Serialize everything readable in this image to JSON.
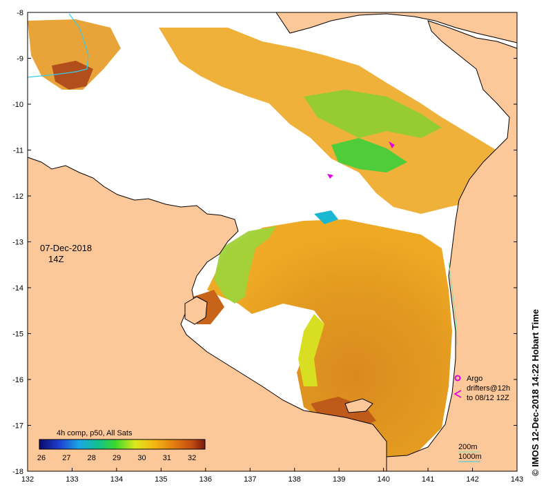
{
  "map": {
    "lon_range": [
      132,
      143
    ],
    "lat_range": [
      -18,
      -8
    ],
    "x_ticks": [
      "132",
      "133",
      "134",
      "135",
      "136",
      "137",
      "138",
      "139",
      "140",
      "141",
      "142",
      "143"
    ],
    "y_ticks": [
      "-8",
      "-9",
      "-10",
      "-11",
      "-12",
      "-13",
      "-14",
      "-15",
      "-16",
      "-17",
      "-18"
    ],
    "date": "07-Dec-2018",
    "time": "14Z",
    "side_label": "© IMOS 12-Dec-2018 14:22 Hobart Time",
    "colors": {
      "land": "#fcc89a",
      "sea_nodata": "#ffffff",
      "coast": "#000000",
      "river": "#33ccee"
    }
  },
  "legend": {
    "argo_label": "Argo",
    "drifters_label": "drifters@12h",
    "drifters_sub": "to 08/12 12Z",
    "depth_200": "200m",
    "depth_1000": "1000m"
  },
  "colorbar": {
    "title": "4h comp, p50, All Sats",
    "ticks": [
      "26",
      "27",
      "28",
      "29",
      "30",
      "31",
      "32"
    ],
    "range": [
      26,
      32.6
    ]
  }
}
